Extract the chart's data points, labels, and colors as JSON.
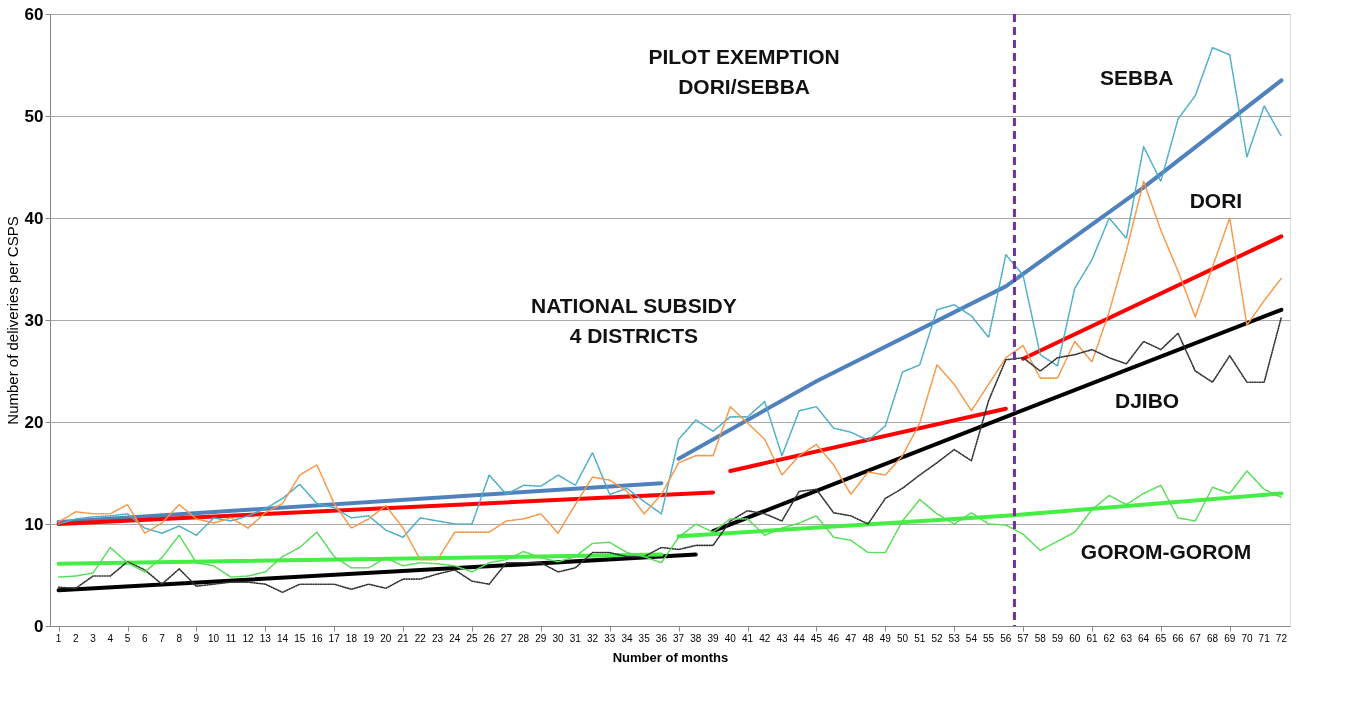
{
  "chart_data": {
    "type": "line",
    "xlabel": "Number of months",
    "ylabel": "Number of deliveries per CSPS",
    "xlim": [
      0.5,
      72.5
    ],
    "xticks": [
      1,
      2,
      3,
      4,
      5,
      6,
      7,
      8,
      9,
      10,
      11,
      12,
      13,
      14,
      15,
      16,
      17,
      18,
      19,
      20,
      21,
      22,
      23,
      24,
      25,
      26,
      27,
      28,
      29,
      30,
      31,
      32,
      33,
      34,
      35,
      36,
      37,
      38,
      39,
      40,
      41,
      42,
      43,
      44,
      45,
      46,
      47,
      48,
      49,
      50,
      51,
      52,
      53,
      54,
      55,
      56,
      57,
      58,
      59,
      60,
      61,
      62,
      63,
      64,
      65,
      66,
      67,
      68,
      69,
      70,
      71,
      72
    ],
    "ylim": [
      0,
      60
    ],
    "yticks": [
      0,
      10,
      20,
      30,
      40,
      50,
      60
    ],
    "grid": "y",
    "series": [
      {
        "color": "#4bacc6",
        "line_style": "dotted",
        "x": [
          1,
          2,
          3,
          4,
          5,
          6,
          7,
          8,
          9,
          10,
          11,
          12,
          13,
          14,
          15,
          16,
          17,
          18,
          19,
          20,
          21,
          22,
          23,
          24,
          25,
          26,
          27,
          28,
          29,
          30,
          31,
          32,
          33,
          34,
          35,
          36,
          37,
          38,
          39,
          40,
          41,
          42,
          43,
          44,
          45,
          46,
          47,
          48,
          49,
          50,
          51,
          52,
          53,
          54,
          55,
          56,
          57,
          58,
          59,
          60,
          61,
          62,
          63,
          64,
          65,
          66,
          67,
          68,
          69,
          70,
          71,
          72
        ],
        "values": [
          10,
          10.5,
          10.7,
          10.8,
          11,
          9.6,
          9.1,
          9.8,
          8.9,
          10.6,
          10.3,
          10.8,
          11.5,
          12.5,
          13.9,
          12,
          11.6,
          10.6,
          10.8,
          9.4,
          8.7,
          10.6,
          10.3,
          10,
          10,
          14.8,
          12.9,
          13.8,
          13.7,
          14.8,
          13.8,
          17,
          12.9,
          13.5,
          12.2,
          11,
          18.3,
          20.2,
          19.1,
          20.5,
          20.5,
          22,
          16.7,
          21.1,
          21.5,
          19.4,
          19,
          18.2,
          19.6,
          24.9,
          25.6,
          31,
          31.5,
          30.4,
          28.3,
          36.4,
          34.4,
          26.6,
          25.5,
          33.1,
          35.9,
          40,
          38,
          47,
          43.6,
          49.7,
          52,
          56.7,
          56,
          46,
          51,
          48
        ]
      },
      {
        "color": "#f79646",
        "line_style": "dotted",
        "x": [
          1,
          2,
          3,
          4,
          5,
          6,
          7,
          8,
          9,
          10,
          11,
          12,
          13,
          14,
          15,
          16,
          17,
          18,
          19,
          20,
          21,
          22,
          23,
          24,
          25,
          26,
          27,
          28,
          29,
          30,
          31,
          32,
          33,
          34,
          35,
          36,
          37,
          38,
          39,
          40,
          41,
          42,
          43,
          44,
          45,
          46,
          47,
          48,
          49,
          50,
          51,
          52,
          53,
          54,
          55,
          56,
          57,
          58,
          59,
          60,
          61,
          62,
          63,
          64,
          65,
          66,
          67,
          68,
          69,
          70,
          71,
          72
        ],
        "values": [
          10.2,
          11.2,
          11,
          11,
          11.9,
          9.1,
          10.1,
          11.9,
          10.5,
          10.1,
          10.6,
          9.6,
          11.1,
          12,
          14.8,
          15.8,
          12,
          9.6,
          10.5,
          11.8,
          9.6,
          6.5,
          6.5,
          9.2,
          9.2,
          9.2,
          10.3,
          10.5,
          11,
          9.1,
          11.9,
          14.6,
          14.3,
          13.2,
          11,
          12.9,
          16,
          16.7,
          16.7,
          21.5,
          19.9,
          18.3,
          14.8,
          16.7,
          17.8,
          15.8,
          12.9,
          15.1,
          14.8,
          16.7,
          19.9,
          25.6,
          23.7,
          21.1,
          23.7,
          26.3,
          27.5,
          24.3,
          24.3,
          27.9,
          25.9,
          30.8,
          36.8,
          43.6,
          38.8,
          34.8,
          30.3,
          35.2,
          40,
          29.5,
          31.9,
          34.1
        ]
      },
      {
        "color": "#333333",
        "line_style": "dotted",
        "x": [
          1,
          2,
          3,
          4,
          5,
          6,
          7,
          8,
          9,
          10,
          11,
          12,
          13,
          14,
          15,
          16,
          17,
          18,
          19,
          20,
          21,
          22,
          23,
          24,
          25,
          26,
          27,
          28,
          29,
          30,
          31,
          32,
          33,
          34,
          35,
          36,
          37,
          38,
          39,
          40,
          41,
          42,
          43,
          44,
          45,
          46,
          47,
          48,
          49,
          50,
          51,
          52,
          53,
          54,
          55,
          56,
          57,
          58,
          59,
          60,
          61,
          62,
          63,
          64,
          65,
          66,
          67,
          68,
          69,
          70,
          71,
          72
        ],
        "values": [
          3.8,
          3.7,
          4.9,
          4.9,
          6.3,
          5.5,
          4.1,
          5.6,
          3.9,
          4.1,
          4.3,
          4.3,
          4.1,
          3.3,
          4.1,
          4.1,
          4.1,
          3.6,
          4.1,
          3.7,
          4.6,
          4.6,
          5.1,
          5.5,
          4.4,
          4.1,
          6.2,
          6.2,
          6.2,
          5.3,
          5.7,
          7.2,
          7.2,
          6.8,
          6.8,
          7.7,
          7.5,
          7.9,
          7.9,
          10.3,
          11.3,
          11,
          10.3,
          13.2,
          13.4,
          11.1,
          10.8,
          10,
          12.5,
          13.5,
          14.8,
          16,
          17.3,
          16.2,
          22.1,
          26.1,
          26.3,
          25,
          26.3,
          26.6,
          27.1,
          26.3,
          25.7,
          27.9,
          27.1,
          28.7,
          25,
          23.9,
          26.5,
          23.9,
          23.9,
          30.3
        ]
      },
      {
        "color": "#55dd55",
        "line_style": "dotted",
        "x": [
          1,
          2,
          3,
          4,
          5,
          6,
          7,
          8,
          9,
          10,
          11,
          12,
          13,
          14,
          15,
          16,
          17,
          18,
          19,
          20,
          21,
          22,
          23,
          24,
          25,
          26,
          27,
          28,
          29,
          30,
          31,
          32,
          33,
          34,
          35,
          36,
          37,
          38,
          39,
          40,
          41,
          42,
          43,
          44,
          45,
          46,
          47,
          48,
          49,
          50,
          51,
          52,
          53,
          54,
          55,
          56,
          57,
          58,
          59,
          60,
          61,
          62,
          63,
          64,
          65,
          66,
          67,
          68,
          69,
          70,
          71,
          72
        ],
        "values": [
          4.8,
          4.9,
          5.2,
          7.7,
          6.2,
          5.3,
          6.7,
          8.9,
          6.2,
          5.9,
          4.8,
          4.9,
          5.3,
          6.8,
          7.7,
          9.2,
          6.8,
          5.7,
          5.7,
          6.7,
          5.9,
          6.2,
          6.1,
          5.9,
          5.3,
          6.2,
          6.5,
          7.3,
          6.7,
          6.3,
          6.8,
          8.1,
          8.2,
          7.2,
          6.8,
          6.2,
          8.7,
          10,
          9.2,
          10.5,
          10.5,
          8.9,
          9.6,
          10.1,
          10.8,
          8.7,
          8.4,
          7.2,
          7.2,
          10.3,
          12.4,
          11,
          10,
          11.1,
          10,
          9.9,
          9,
          7.4,
          8.3,
          9.2,
          11.4,
          12.8,
          11.9,
          13,
          13.8,
          10.6,
          10.3,
          13.6,
          13,
          15.2,
          13.4,
          12.6
        ]
      },
      {
        "color": "#4f81bd",
        "line_style": "solid",
        "x": [
          1,
          36
        ],
        "values": [
          10.2,
          14
        ]
      },
      {
        "color": "#4f81bd",
        "line_style": "solid",
        "x": [
          37,
          45,
          56,
          64,
          72
        ],
        "values": [
          16.4,
          24,
          33.3,
          43,
          53.5
        ]
      },
      {
        "color": "#ff0000",
        "line_style": "solid",
        "x": [
          1,
          39
        ],
        "values": [
          10,
          13.1
        ]
      },
      {
        "color": "#ff0000",
        "line_style": "solid",
        "x": [
          40,
          56
        ],
        "values": [
          15.2,
          21.3
        ]
      },
      {
        "color": "#ff0000",
        "line_style": "solid",
        "x": [
          57,
          72
        ],
        "values": [
          26.2,
          38.2
        ]
      },
      {
        "color": "#000000",
        "line_style": "solid",
        "x": [
          1,
          38
        ],
        "values": [
          3.5,
          7
        ]
      },
      {
        "color": "#000000",
        "line_style": "solid",
        "x": [
          39,
          56,
          72
        ],
        "values": [
          9.3,
          20.5,
          31
        ]
      },
      {
        "color": "#44ee44",
        "line_style": "solid",
        "x": [
          1,
          36
        ],
        "values": [
          6.1,
          7
        ]
      },
      {
        "color": "#44ee44",
        "line_style": "solid",
        "x": [
          37,
          56,
          72
        ],
        "values": [
          8.8,
          10.8,
          13
        ]
      }
    ],
    "ref_lines": [
      {
        "axis": "x",
        "value": 56.5,
        "color": "#7030a0",
        "line_style": "dashed"
      }
    ],
    "annotations": [
      "SEBBA",
      "DORI",
      "DJIBO",
      "GOROM-GOROM",
      "PILOT EXEMPTION\nDORI/SEBBA",
      "NATIONAL SUBSIDY\n4 DISTRICTS"
    ]
  }
}
